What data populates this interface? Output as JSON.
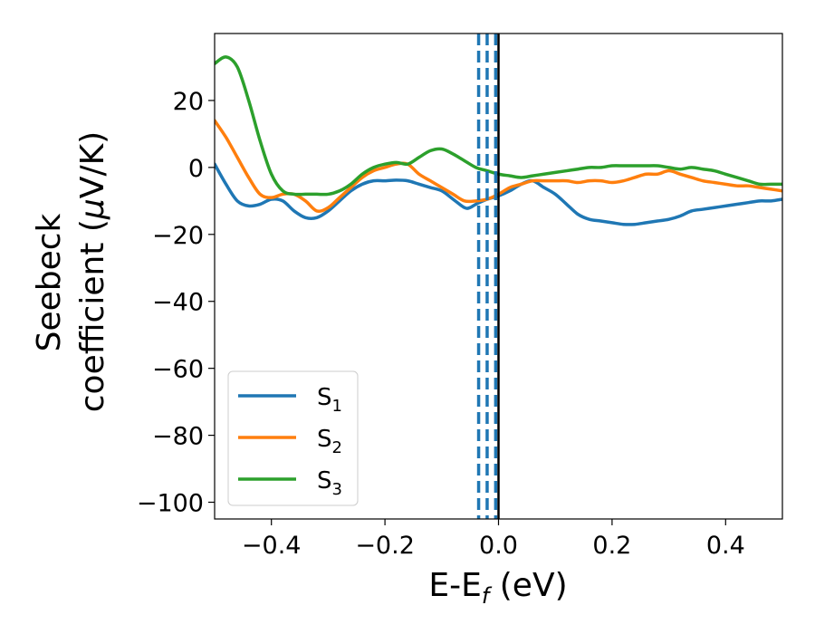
{
  "chart_data": {
    "type": "line",
    "xlabel": {
      "main": "E-E",
      "sub": "f",
      "tail": " (eV)"
    },
    "ylabel": {
      "line1": "Seebeck",
      "line2_pre": "coefficient  (",
      "line2_mu": "μ",
      "line2_post": "V/K)"
    },
    "xlim": [
      -0.5,
      0.5
    ],
    "ylim": [
      -105,
      40
    ],
    "xticks": [
      -0.4,
      -0.2,
      0.0,
      0.2,
      0.4
    ],
    "xtick_labels": [
      "−0.4",
      "−0.2",
      "0.0",
      "0.2",
      "0.4"
    ],
    "yticks": [
      20,
      0,
      -20,
      -40,
      -60,
      -80,
      -100
    ],
    "ytick_labels": [
      "20",
      "0",
      "−20",
      "−40",
      "−60",
      "−80",
      "−100"
    ],
    "legend_position": "lower-left",
    "series": [
      {
        "name": "S",
        "sub": "1",
        "color": "#1f77b4",
        "x": [
          -0.5,
          -0.48,
          -0.46,
          -0.44,
          -0.42,
          -0.4,
          -0.38,
          -0.36,
          -0.34,
          -0.32,
          -0.3,
          -0.28,
          -0.26,
          -0.24,
          -0.22,
          -0.2,
          -0.18,
          -0.16,
          -0.14,
          -0.12,
          -0.1,
          -0.08,
          -0.06,
          -0.05,
          -0.04,
          -0.02,
          0.0,
          0.02,
          0.04,
          0.06,
          0.08,
          0.1,
          0.12,
          0.14,
          0.16,
          0.18,
          0.2,
          0.22,
          0.24,
          0.26,
          0.28,
          0.3,
          0.32,
          0.34,
          0.36,
          0.38,
          0.4,
          0.42,
          0.44,
          0.46,
          0.48,
          0.5
        ],
        "y": [
          1,
          -5,
          -10,
          -11.5,
          -11,
          -9.5,
          -10,
          -13,
          -15,
          -15,
          -13,
          -10,
          -7,
          -5,
          -4,
          -4,
          -3.8,
          -4,
          -5,
          -6,
          -7,
          -9.5,
          -12,
          -12,
          -11,
          -9.5,
          -8.5,
          -7,
          -5,
          -4,
          -6,
          -8,
          -11,
          -14,
          -15.5,
          -16,
          -16.5,
          -17,
          -17,
          -16.5,
          -16,
          -15.5,
          -14.5,
          -13,
          -12.5,
          -12,
          -11.5,
          -11,
          -10.5,
          -10,
          -10,
          -9.5
        ]
      },
      {
        "name": "S",
        "sub": "2",
        "color": "#ff7f0e",
        "x": [
          -0.5,
          -0.48,
          -0.46,
          -0.44,
          -0.42,
          -0.4,
          -0.38,
          -0.36,
          -0.34,
          -0.32,
          -0.3,
          -0.28,
          -0.26,
          -0.24,
          -0.22,
          -0.2,
          -0.18,
          -0.16,
          -0.14,
          -0.12,
          -0.1,
          -0.08,
          -0.06,
          -0.04,
          -0.02,
          0.0,
          0.02,
          0.04,
          0.06,
          0.08,
          0.1,
          0.12,
          0.14,
          0.16,
          0.18,
          0.2,
          0.22,
          0.24,
          0.26,
          0.28,
          0.3,
          0.32,
          0.34,
          0.36,
          0.38,
          0.4,
          0.42,
          0.44,
          0.46,
          0.48,
          0.5
        ],
        "y": [
          14,
          9,
          3,
          -3,
          -8,
          -9,
          -8,
          -8,
          -10,
          -13,
          -12,
          -9,
          -6,
          -3,
          -1,
          0,
          1,
          1,
          -2,
          -4,
          -6,
          -8,
          -10,
          -10,
          -9.5,
          -8,
          -6,
          -5,
          -4,
          -4,
          -4,
          -4,
          -4.5,
          -4,
          -4,
          -4.5,
          -4,
          -3,
          -2,
          -2,
          -1,
          -2,
          -3,
          -4,
          -4.5,
          -5,
          -5.5,
          -5.5,
          -6,
          -6.5,
          -7
        ]
      },
      {
        "name": "S",
        "sub": "3",
        "color": "#2ca02c",
        "x": [
          -0.5,
          -0.48,
          -0.46,
          -0.44,
          -0.42,
          -0.4,
          -0.38,
          -0.36,
          -0.34,
          -0.32,
          -0.3,
          -0.28,
          -0.26,
          -0.24,
          -0.22,
          -0.2,
          -0.18,
          -0.16,
          -0.14,
          -0.12,
          -0.1,
          -0.08,
          -0.06,
          -0.04,
          -0.02,
          0.0,
          0.02,
          0.04,
          0.06,
          0.08,
          0.1,
          0.12,
          0.14,
          0.16,
          0.18,
          0.2,
          0.22,
          0.24,
          0.26,
          0.28,
          0.3,
          0.32,
          0.34,
          0.36,
          0.38,
          0.4,
          0.42,
          0.44,
          0.46,
          0.48,
          0.5
        ],
        "y": [
          31,
          33,
          30,
          20,
          8,
          -2,
          -7,
          -8,
          -8,
          -8,
          -8,
          -7,
          -5,
          -2,
          0,
          1,
          1.5,
          1,
          3,
          5,
          5.5,
          4,
          2,
          0,
          -1,
          -2,
          -2.5,
          -3,
          -2.5,
          -2,
          -1.5,
          -1,
          -0.5,
          0,
          0,
          0.5,
          0.5,
          0.5,
          0.5,
          0.5,
          0,
          -0.5,
          0,
          -0.5,
          -1,
          -2,
          -3,
          -4,
          -5,
          -5,
          -5
        ]
      }
    ],
    "vlines": [
      {
        "x": -0.035,
        "style": "dashed",
        "color": "#1f77b4"
      },
      {
        "x": -0.02,
        "style": "dashed",
        "color": "#1f77b4"
      },
      {
        "x": -0.005,
        "style": "dashed",
        "color": "#1f77b4"
      },
      {
        "x": 0.0,
        "style": "solid",
        "color": "#000000"
      }
    ]
  }
}
